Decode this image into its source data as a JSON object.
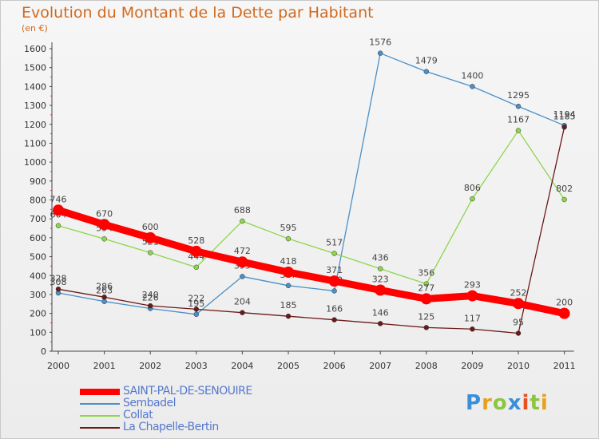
{
  "title": "Evolution du Montant de la Dette par Habitant",
  "subtitle": "(en €)",
  "logo": "Proxiti",
  "chart_data": {
    "type": "line",
    "title": "Evolution du Montant de la Dette par Habitant",
    "subtitle": "(en €)",
    "xlabel": "",
    "ylabel": "",
    "x": [
      "2000",
      "2001",
      "2002",
      "2003",
      "2004",
      "2005",
      "2006",
      "2007",
      "2008",
      "2009",
      "2010",
      "2011"
    ],
    "ylim": [
      0,
      1600
    ],
    "yticks": [
      0,
      100,
      200,
      300,
      400,
      500,
      600,
      700,
      800,
      900,
      1000,
      1100,
      1200,
      1300,
      1400,
      1500,
      1600
    ],
    "grid": false,
    "legend_position": "bottom-left",
    "series": [
      {
        "name": "SAINT-PAL-DE-SENOUIRE",
        "color": "#ff0000",
        "values": [
          746,
          670,
          600,
          528,
          472,
          418,
          371,
          323,
          277,
          293,
          252,
          200
        ]
      },
      {
        "name": "Sembadel",
        "color": "#4a90c8",
        "values": [
          308,
          263,
          226,
          195,
          395,
          347,
          319,
          1576,
          1479,
          1400,
          1295,
          1194
        ]
      },
      {
        "name": "Collat",
        "color": "#8cd64a",
        "values": [
          664,
          594,
          521,
          444,
          688,
          595,
          517,
          436,
          356,
          806,
          1167,
          802
        ]
      },
      {
        "name": "La Chapelle-Bertin",
        "color": "#6b1a1a",
        "values": [
          328,
          286,
          240,
          222,
          204,
          185,
          166,
          146,
          125,
          117,
          95,
          1185
        ]
      }
    ]
  }
}
